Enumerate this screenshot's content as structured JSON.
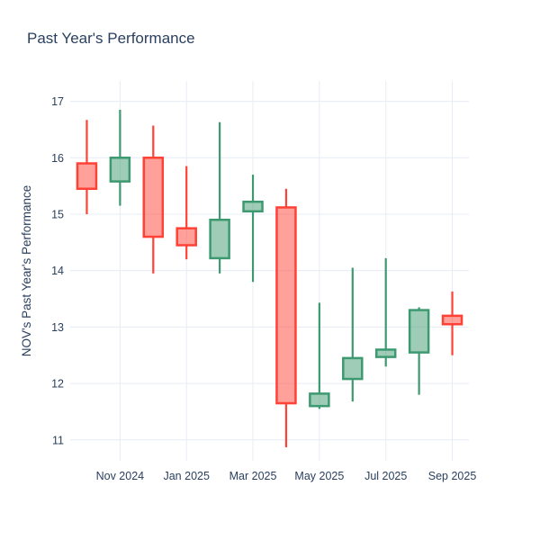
{
  "title": "Past Year's Performance",
  "yaxis_title": "NOV's Past Year's Performance",
  "colors": {
    "text": "#2a3f5f",
    "grid": "#e7ecf5",
    "background": "#ffffff",
    "increasing": "#3D9970",
    "decreasing": "#FF4136"
  },
  "chart_data": {
    "type": "candlestick",
    "title": "Past Year's Performance",
    "xlabel": "",
    "ylabel": "NOV's Past Year's Performance",
    "x": [
      "Oct 2024",
      "Nov 2024",
      "Dec 2024",
      "Jan 2025",
      "Feb 2025",
      "Mar 2025",
      "Apr 2025",
      "May 2025",
      "Jun 2025",
      "Jul 2025",
      "Aug 2025",
      "Sep 2025"
    ],
    "open": [
      15.9,
      15.58,
      16.0,
      14.75,
      14.22,
      15.05,
      15.12,
      11.6,
      12.08,
      12.47,
      12.55,
      13.2
    ],
    "high": [
      16.67,
      16.85,
      16.57,
      15.85,
      16.63,
      15.7,
      15.45,
      13.43,
      14.05,
      14.22,
      13.35,
      13.63
    ],
    "low": [
      15.0,
      15.15,
      13.95,
      14.2,
      13.95,
      13.8,
      10.87,
      11.55,
      11.68,
      12.3,
      11.8,
      12.5
    ],
    "close": [
      15.45,
      16.0,
      14.6,
      14.45,
      14.9,
      15.22,
      11.65,
      11.82,
      12.45,
      12.6,
      13.3,
      13.05
    ],
    "ylim": [
      10.63,
      17.36
    ],
    "yticks": [
      11,
      12,
      13,
      14,
      15,
      16,
      17
    ],
    "xtick_indices": [
      1,
      3,
      5,
      7,
      9,
      11
    ],
    "xtick_labels": [
      "Nov 2024",
      "Jan 2025",
      "Mar 2025",
      "May 2025",
      "Jul 2025",
      "Sep 2025"
    ],
    "grid": true,
    "legend": "none"
  }
}
